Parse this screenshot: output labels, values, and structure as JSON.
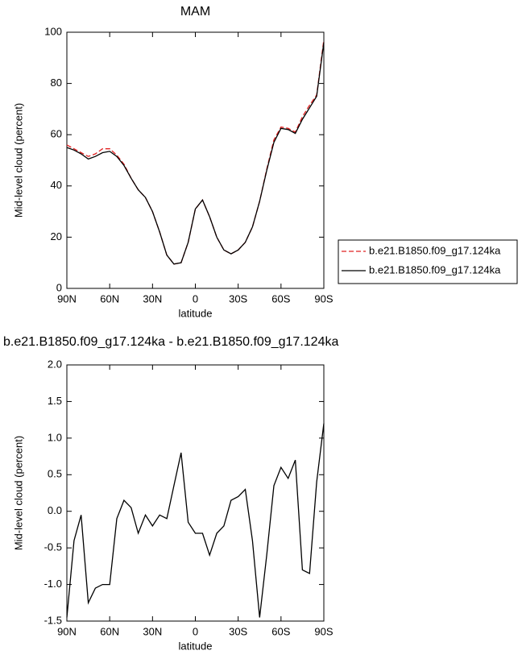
{
  "chart_data": [
    {
      "type": "line",
      "title": "MAM",
      "xlabel": "latitude",
      "ylabel": "Mid-level cloud (percent)",
      "x": [
        90,
        85,
        80,
        75,
        70,
        65,
        60,
        55,
        50,
        45,
        40,
        35,
        30,
        25,
        20,
        15,
        10,
        5,
        0,
        -5,
        -10,
        -15,
        -20,
        -25,
        -30,
        -35,
        -40,
        -45,
        -50,
        -55,
        -60,
        -65,
        -70,
        -75,
        -80,
        -85,
        -90
      ],
      "xlim": [
        90,
        -90
      ],
      "xticks": [
        {
          "value": 90,
          "label": "90N"
        },
        {
          "value": 60,
          "label": "60N"
        },
        {
          "value": 30,
          "label": "30N"
        },
        0,
        {
          "value": -30,
          "label": "30S"
        },
        {
          "value": -60,
          "label": "60S"
        },
        {
          "value": -90,
          "label": "90S"
        }
      ],
      "ylim": [
        0,
        100
      ],
      "yticks": [
        0,
        20,
        40,
        60,
        80,
        100
      ],
      "legend": "right",
      "series": [
        {
          "name": "b.e21.B1850.f09_g17.124ka",
          "color": "#e02020",
          "dashed": true,
          "values": [
            56,
            54.5,
            53,
            51.5,
            52.5,
            54.5,
            54.5,
            52,
            48.5,
            43,
            38.5,
            35.5,
            30,
            22,
            13,
            9.5,
            10,
            18,
            31,
            34.5,
            28,
            20,
            15,
            13.5,
            15,
            18,
            24,
            34,
            46.5,
            58,
            63,
            62.5,
            61,
            67,
            71.5,
            75.5,
            97
          ]
        },
        {
          "name": "b.e21.B1850.f09_g17.124ka",
          "color": "#000000",
          "dashed": false,
          "values": [
            55,
            54,
            52.5,
            50.5,
            51.5,
            53,
            53.5,
            51.5,
            48,
            43,
            38.5,
            35.5,
            30,
            22,
            13,
            9.5,
            10,
            18,
            31,
            34.5,
            28,
            20,
            15,
            13.5,
            15,
            18,
            24,
            34,
            46,
            57,
            62.5,
            62,
            60.5,
            66,
            70.5,
            75,
            96
          ]
        }
      ]
    },
    {
      "type": "line",
      "title": "b.e21.B1850.f09_g17.124ka - b.e21.B1850.f09_g17.124ka",
      "xlabel": "latitude",
      "ylabel": "Mid-level cloud (percent)",
      "x": [
        90,
        85,
        80,
        75,
        70,
        65,
        60,
        55,
        50,
        45,
        40,
        35,
        30,
        25,
        20,
        15,
        10,
        5,
        0,
        -5,
        -10,
        -15,
        -20,
        -25,
        -30,
        -35,
        -40,
        -45,
        -50,
        -55,
        -60,
        -65,
        -70,
        -75,
        -80,
        -85,
        -90
      ],
      "xlim": [
        90,
        -90
      ],
      "xticks": [
        {
          "value": 90,
          "label": "90N"
        },
        {
          "value": 60,
          "label": "60N"
        },
        {
          "value": 30,
          "label": "30N"
        },
        0,
        {
          "value": -30,
          "label": "30S"
        },
        {
          "value": -60,
          "label": "60S"
        },
        {
          "value": -90,
          "label": "90S"
        }
      ],
      "ylim": [
        -1.5,
        2.0
      ],
      "yticks": [
        -1.5,
        {
          "value": -1,
          "label": "-1.0"
        },
        -0.5,
        {
          "value": 0,
          "label": "0.0"
        },
        0.5,
        {
          "value": 1,
          "label": "1.0"
        },
        1.5,
        {
          "value": 2,
          "label": "2.0"
        }
      ],
      "color": "#000000",
      "values": [
        -1.45,
        -0.4,
        -0.05,
        -1.25,
        -1.05,
        -1.0,
        -1.0,
        -0.1,
        0.15,
        0.05,
        -0.3,
        -0.05,
        -0.2,
        -0.05,
        -0.1,
        0.35,
        0.8,
        -0.15,
        -0.3,
        -0.3,
        -0.6,
        -0.3,
        -0.2,
        0.15,
        0.2,
        0.3,
        -0.4,
        -1.45,
        -0.6,
        0.35,
        0.6,
        0.45,
        0.7,
        -0.8,
        -0.85,
        0.4,
        1.2
      ]
    }
  ]
}
